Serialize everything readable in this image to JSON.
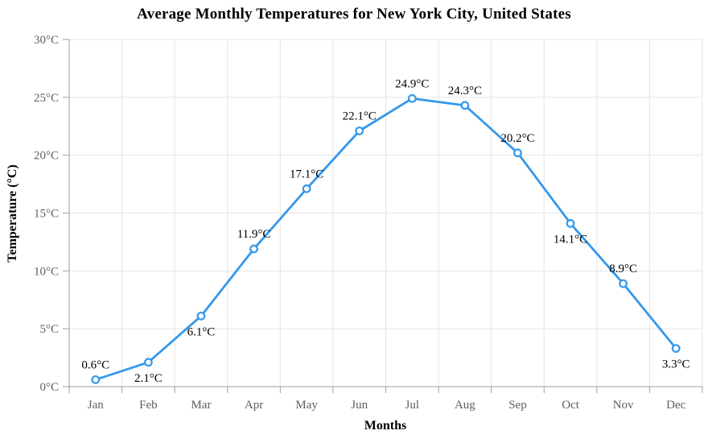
{
  "title": "Average Monthly Temperatures for New York City, United States",
  "chart_data": {
    "type": "line",
    "title": "Average Monthly Temperatures for New York City, United States",
    "xlabel": "Months",
    "ylabel": "Temperature (°C)",
    "categories": [
      "Jan",
      "Feb",
      "Mar",
      "Apr",
      "May",
      "Jun",
      "Jul",
      "Aug",
      "Sep",
      "Oct",
      "Nov",
      "Dec"
    ],
    "values": [
      0.6,
      2.1,
      6.1,
      11.9,
      17.1,
      22.1,
      24.9,
      24.3,
      20.2,
      14.1,
      8.9,
      3.3
    ],
    "point_labels": [
      "0.6°C",
      "2.1°C",
      "6.1°C",
      "11.9°C",
      "17.1°C",
      "22.1°C",
      "24.9°C",
      "24.3°C",
      "20.2°C",
      "14.1°C",
      "8.9°C",
      "3.3°C"
    ],
    "label_placements": [
      "above",
      "below",
      "below",
      "above",
      "above",
      "above",
      "above",
      "above",
      "above",
      "below",
      "above",
      "below"
    ],
    "ylim": [
      0,
      30
    ],
    "ytick_step": 5,
    "ytick_labels": [
      "0°C",
      "5°C",
      "10°C",
      "15°C",
      "20°C",
      "25°C",
      "30°C"
    ],
    "grid": true,
    "legend": "none",
    "colors": {
      "line": "#3598ec",
      "marker_fill": "#ffffff",
      "grid": "#e6e6e6",
      "axis": "#9e9e9e",
      "tick_text": "#5f5f5f",
      "data_label_text": "#000000"
    }
  }
}
